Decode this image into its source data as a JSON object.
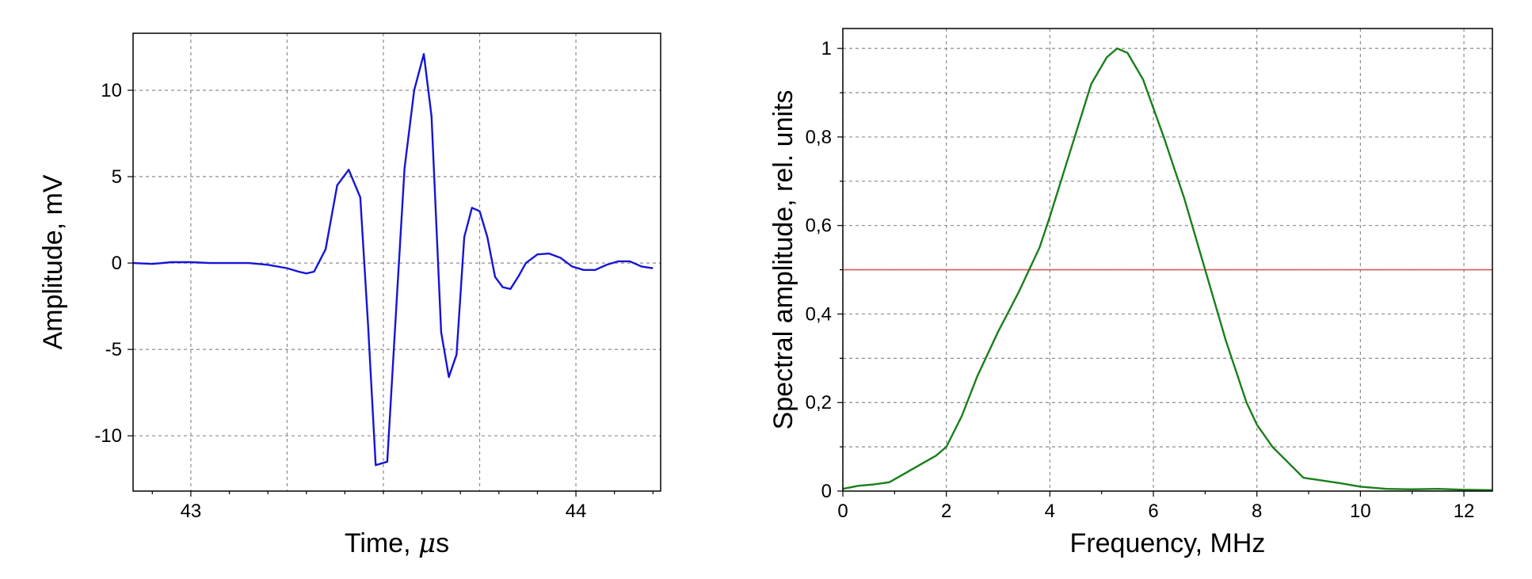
{
  "chart_data": [
    {
      "type": "line",
      "xlabel": "Time, μs",
      "xlabel_prefix": "Time, ",
      "xlabel_mu": "μ",
      "xlabel_suffix": "s",
      "ylabel": "Amplitude, mV",
      "xlim": [
        42.85,
        44.22
      ],
      "ylim": [
        -13.2,
        13.3
      ],
      "x_ticks": [
        43,
        44
      ],
      "x_tick_labels": [
        "43",
        "44"
      ],
      "x_minor_ticks": [
        42.9,
        43.1,
        43.2,
        43.3,
        43.4,
        43.5,
        43.6,
        43.7,
        43.8,
        43.9,
        44.1,
        44.2
      ],
      "x_grid": [
        43,
        43.25,
        43.5,
        43.75,
        44
      ],
      "y_ticks": [
        -10,
        -5,
        0,
        5,
        10
      ],
      "y_tick_labels": [
        "-10",
        "-5",
        "0",
        "5",
        "10"
      ],
      "grid": true,
      "color": "#1515d6",
      "series": [
        {
          "x": [
            42.85,
            42.9,
            42.95,
            43.0,
            43.05,
            43.1,
            43.15,
            43.2,
            43.25,
            43.28,
            43.3,
            43.32,
            43.35,
            43.38,
            43.41,
            43.44,
            43.46,
            43.48,
            43.51,
            43.535,
            43.555,
            43.58,
            43.605,
            43.625,
            43.65,
            43.67,
            43.69,
            43.71,
            43.73,
            43.75,
            43.77,
            43.79,
            43.81,
            43.83,
            43.85,
            43.87,
            43.9,
            43.93,
            43.96,
            43.99,
            44.02,
            44.05,
            44.08,
            44.11,
            44.14,
            44.17,
            44.2
          ],
          "y": [
            0.0,
            -0.05,
            0.05,
            0.05,
            0.0,
            0.0,
            0.0,
            -0.1,
            -0.3,
            -0.5,
            -0.6,
            -0.5,
            0.8,
            4.5,
            5.4,
            3.8,
            -3.5,
            -11.7,
            -11.5,
            -2.0,
            5.5,
            10.0,
            12.1,
            8.5,
            -4.0,
            -6.6,
            -5.3,
            1.5,
            3.2,
            3.0,
            1.5,
            -0.8,
            -1.4,
            -1.5,
            -0.8,
            0.0,
            0.5,
            0.55,
            0.3,
            -0.2,
            -0.4,
            -0.4,
            -0.1,
            0.1,
            0.1,
            -0.2,
            -0.3
          ]
        }
      ]
    },
    {
      "type": "line",
      "xlabel": "Frequency, MHz",
      "ylabel": "Spectral amplitude, rel. units",
      "xlim": [
        0,
        12.55
      ],
      "ylim": [
        0,
        1.045
      ],
      "x_ticks": [
        0,
        2,
        4,
        6,
        8,
        10,
        12
      ],
      "x_tick_labels": [
        "0",
        "2",
        "4",
        "6",
        "8",
        "10",
        "12"
      ],
      "x_minor_ticks": [
        1,
        3,
        5,
        7,
        9,
        11
      ],
      "y_ticks": [
        0,
        0.2,
        0.4,
        0.6,
        0.8,
        1.0
      ],
      "y_tick_labels": [
        "0",
        "0,2",
        "0,4",
        "0,6",
        "0,8",
        "1"
      ],
      "y_minor_ticks": [
        0.1,
        0.3,
        0.5,
        0.7,
        0.9
      ],
      "grid": true,
      "threshold": {
        "y": 0.5,
        "color": "#e05555"
      },
      "color": "#1a7f1a",
      "series": [
        {
          "x": [
            0.0,
            0.3,
            0.6,
            0.9,
            1.2,
            1.5,
            1.8,
            2.0,
            2.3,
            2.6,
            3.0,
            3.4,
            3.8,
            4.0,
            4.4,
            4.8,
            5.1,
            5.3,
            5.5,
            5.8,
            6.2,
            6.6,
            7.0,
            7.4,
            7.8,
            8.0,
            8.3,
            8.6,
            8.9,
            9.2,
            9.6,
            10.0,
            10.5,
            11.0,
            11.5,
            12.0,
            12.55
          ],
          "y": [
            0.005,
            0.012,
            0.015,
            0.02,
            0.04,
            0.06,
            0.08,
            0.1,
            0.17,
            0.26,
            0.36,
            0.45,
            0.55,
            0.62,
            0.77,
            0.92,
            0.98,
            1.0,
            0.99,
            0.93,
            0.8,
            0.66,
            0.5,
            0.34,
            0.2,
            0.15,
            0.1,
            0.065,
            0.03,
            0.025,
            0.018,
            0.01,
            0.005,
            0.004,
            0.005,
            0.003,
            0.002
          ]
        }
      ]
    }
  ]
}
